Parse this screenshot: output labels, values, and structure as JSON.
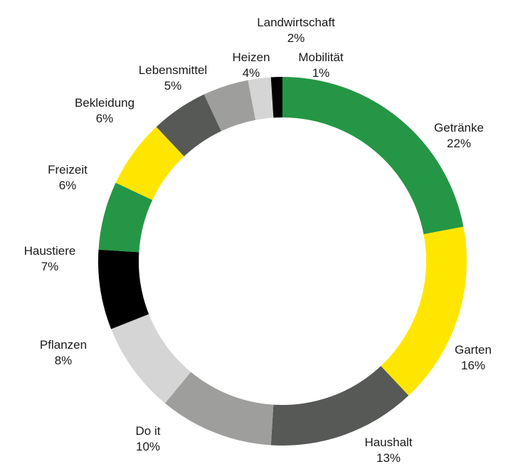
{
  "chart_data": {
    "type": "pie",
    "donut": true,
    "start_angle_deg": 0,
    "direction": "clockwise",
    "slices": [
      {
        "name": "Getränke",
        "value": 22,
        "label": "22%",
        "color": "#259645"
      },
      {
        "name": "Garten",
        "value": 16,
        "label": "16%",
        "color": "#ffe600"
      },
      {
        "name": "Haushalt",
        "value": 13,
        "label": "13%",
        "color": "#575956"
      },
      {
        "name": "Do it",
        "value": 10,
        "label": "10%",
        "color": "#9e9f9d"
      },
      {
        "name": "Pflanzen",
        "value": 8,
        "label": "8%",
        "color": "#d4d5d4"
      },
      {
        "name": "Haustiere",
        "value": 7,
        "label": "7%",
        "color": "#000000"
      },
      {
        "name": "Freizeit",
        "value": 6,
        "label": "6%",
        "color": "#259645"
      },
      {
        "name": "Bekleidung",
        "value": 6,
        "label": "6%",
        "color": "#ffe600"
      },
      {
        "name": "Lebensmittel",
        "value": 5,
        "label": "5%",
        "color": "#575956"
      },
      {
        "name": "Heizen",
        "value": 4,
        "label": "4%",
        "color": "#9e9f9d"
      },
      {
        "name": "Landwirtschaft",
        "value": 2,
        "label": "2%",
        "color": "#d4d5d4"
      },
      {
        "name": "Mobilität",
        "value": 1,
        "label": "1%",
        "color": "#000000"
      }
    ]
  }
}
